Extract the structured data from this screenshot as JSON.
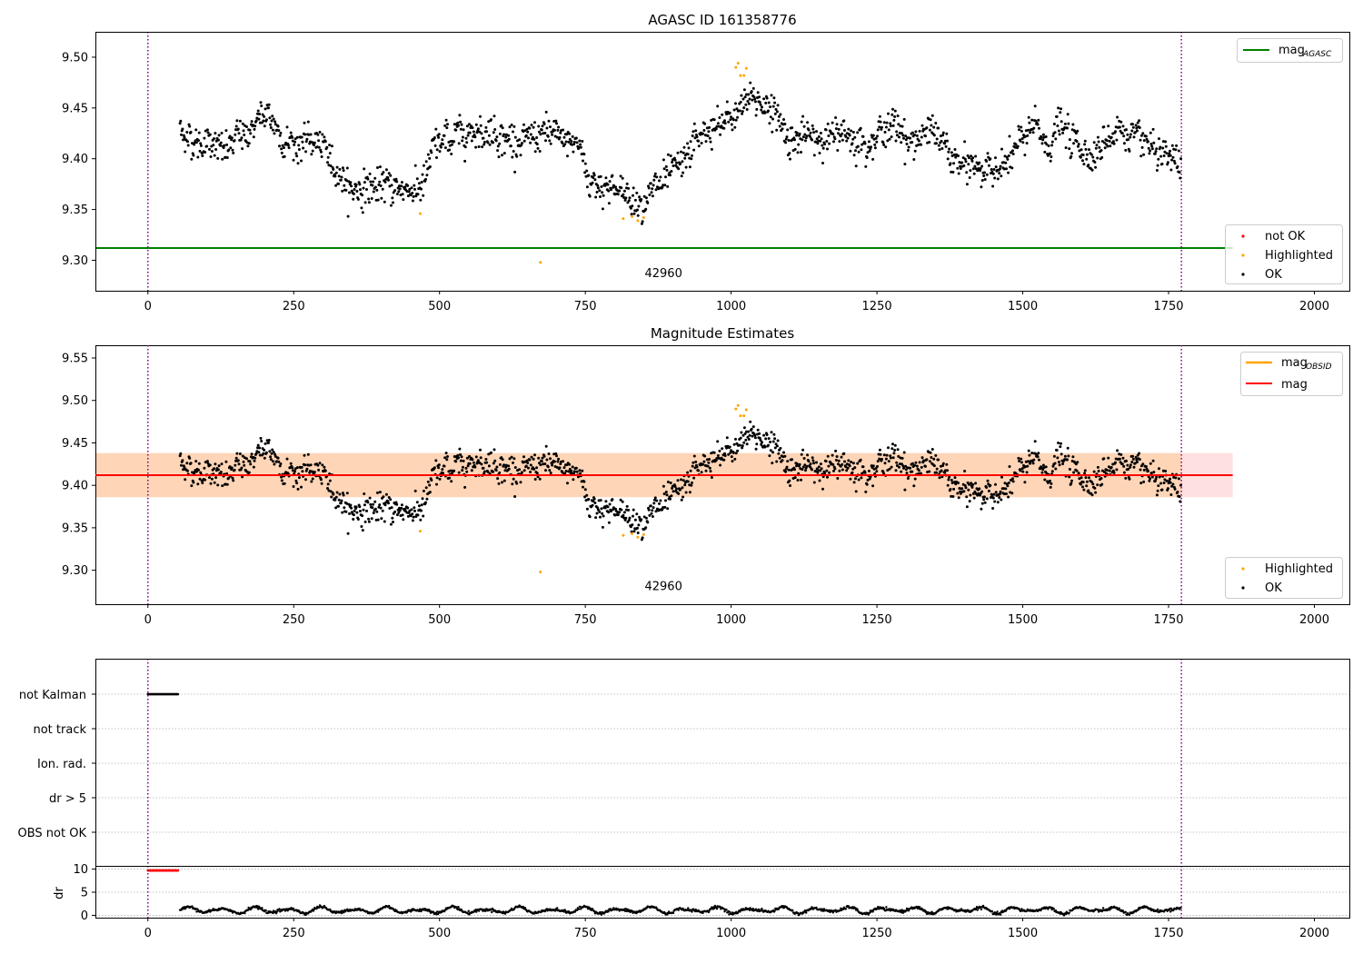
{
  "chart_data": [
    {
      "type": "scatter",
      "title": "AGASC ID 161358776",
      "xlim": [
        -90,
        2060
      ],
      "ylim": [
        9.27,
        9.525
      ],
      "xticks": [
        0,
        250,
        500,
        750,
        1000,
        1250,
        1500,
        1750,
        2000
      ],
      "yticks": [
        9.3,
        9.35,
        9.4,
        9.45,
        9.5
      ],
      "vlines": [
        0,
        1772
      ],
      "mag_agasc": 9.312,
      "mag_agasc_xrange": [
        -90,
        1860
      ],
      "annotation": {
        "text": "42960",
        "x": 884,
        "y": 9.288
      },
      "legend_lines": [
        {
          "label": "mag",
          "sub": "AGASC",
          "color": "#008000"
        }
      ],
      "legend_points": [
        {
          "label": "not OK",
          "color": "#ff0000"
        },
        {
          "label": "Highlighted",
          "color": "#ffa500"
        },
        {
          "label": "OK",
          "color": "#000000"
        }
      ],
      "highlighted": [
        {
          "x": 467,
          "y": 9.346
        },
        {
          "x": 673,
          "y": 9.298
        },
        {
          "x": 815,
          "y": 9.341
        },
        {
          "x": 830,
          "y": 9.343
        },
        {
          "x": 840,
          "y": 9.339
        },
        {
          "x": 850,
          "y": 9.342
        },
        {
          "x": 1008,
          "y": 9.49
        },
        {
          "x": 1012,
          "y": 9.494
        },
        {
          "x": 1016,
          "y": 9.482
        },
        {
          "x": 1022,
          "y": 9.482
        },
        {
          "x": 1026,
          "y": 9.489
        }
      ],
      "ok_trace": [
        [
          55,
          9.428
        ],
        [
          90,
          9.413
        ],
        [
          110,
          9.42
        ],
        [
          130,
          9.405
        ],
        [
          150,
          9.418
        ],
        [
          170,
          9.425
        ],
        [
          190,
          9.44
        ],
        [
          210,
          9.44
        ],
        [
          230,
          9.42
        ],
        [
          260,
          9.415
        ],
        [
          290,
          9.418
        ],
        [
          310,
          9.4
        ],
        [
          330,
          9.385
        ],
        [
          345,
          9.37
        ],
        [
          380,
          9.372
        ],
        [
          420,
          9.372
        ],
        [
          460,
          9.37
        ],
        [
          475,
          9.378
        ],
        [
          490,
          9.41
        ],
        [
          520,
          9.42
        ],
        [
          560,
          9.43
        ],
        [
          600,
          9.425
        ],
        [
          640,
          9.415
        ],
        [
          680,
          9.425
        ],
        [
          700,
          9.42
        ],
        [
          740,
          9.415
        ],
        [
          755,
          9.38
        ],
        [
          780,
          9.375
        ],
        [
          810,
          9.368
        ],
        [
          840,
          9.358
        ],
        [
          860,
          9.365
        ],
        [
          880,
          9.375
        ],
        [
          900,
          9.385
        ],
        [
          920,
          9.395
        ],
        [
          940,
          9.42
        ],
        [
          960,
          9.425
        ],
        [
          990,
          9.435
        ],
        [
          1010,
          9.445
        ],
        [
          1030,
          9.46
        ],
        [
          1060,
          9.455
        ],
        [
          1080,
          9.44
        ],
        [
          1100,
          9.42
        ],
        [
          1150,
          9.42
        ],
        [
          1200,
          9.425
        ],
        [
          1230,
          9.415
        ],
        [
          1260,
          9.43
        ],
        [
          1290,
          9.43
        ],
        [
          1310,
          9.415
        ],
        [
          1340,
          9.43
        ],
        [
          1360,
          9.415
        ],
        [
          1380,
          9.4
        ],
        [
          1400,
          9.39
        ],
        [
          1420,
          9.395
        ],
        [
          1440,
          9.385
        ],
        [
          1460,
          9.395
        ],
        [
          1480,
          9.4
        ],
        [
          1500,
          9.42
        ],
        [
          1520,
          9.43
        ],
        [
          1545,
          9.41
        ],
        [
          1560,
          9.435
        ],
        [
          1580,
          9.42
        ],
        [
          1600,
          9.41
        ],
        [
          1620,
          9.405
        ],
        [
          1640,
          9.415
        ],
        [
          1660,
          9.43
        ],
        [
          1680,
          9.425
        ],
        [
          1700,
          9.415
        ],
        [
          1720,
          9.41
        ],
        [
          1740,
          9.395
        ],
        [
          1760,
          9.4
        ],
        [
          1772,
          9.385
        ]
      ],
      "ok_scatter": 0.013
    },
    {
      "type": "scatter",
      "title": "Magnitude Estimates",
      "xlim": [
        -90,
        2060
      ],
      "ylim": [
        9.26,
        9.565
      ],
      "xticks": [
        0,
        250,
        500,
        750,
        1000,
        1250,
        1500,
        1750,
        2000
      ],
      "yticks": [
        9.3,
        9.35,
        9.4,
        9.45,
        9.5,
        9.55
      ],
      "vlines": [
        0,
        1772
      ],
      "mag": 9.412,
      "mag_band": [
        9.386,
        9.438
      ],
      "mag_obsid_band": [
        9.386,
        9.438
      ],
      "band_xrange": [
        -90,
        1860
      ],
      "annotation": {
        "text": "42960",
        "x": 884,
        "y": 9.282
      },
      "legend_lines": [
        {
          "label": "mag",
          "sub": "OBSID",
          "color": "#ffa500"
        },
        {
          "label": "mag",
          "sub": "",
          "color": "#ff0000"
        }
      ],
      "legend_points": [
        {
          "label": "Highlighted",
          "color": "#ffa500"
        },
        {
          "label": "OK",
          "color": "#000000"
        }
      ],
      "same_points_as": 0
    },
    {
      "type": "scatter",
      "title": "",
      "xlim": [
        -90,
        2060
      ],
      "xticks": [
        0,
        250,
        500,
        750,
        1000,
        1250,
        1500,
        1750,
        2000
      ],
      "vlines": [
        0,
        1772
      ],
      "flag_rows": [
        "not Kalman",
        "not track",
        "Ion. rad.",
        "dr > 5",
        "OBS not OK"
      ],
      "not_kalman_xrange": [
        0,
        52
      ],
      "dr_ylabel": "dr",
      "dr_ylim": [
        -0.5,
        10.5
      ],
      "dr_yticks": [
        0,
        5,
        10
      ],
      "dr_high": {
        "xrange": [
          0,
          52
        ],
        "value": 9.7,
        "color": "#ff0000"
      },
      "dr_trace": {
        "xrange": [
          55,
          1772
        ],
        "mean": 1.1,
        "amplitude": 0.8
      }
    }
  ]
}
